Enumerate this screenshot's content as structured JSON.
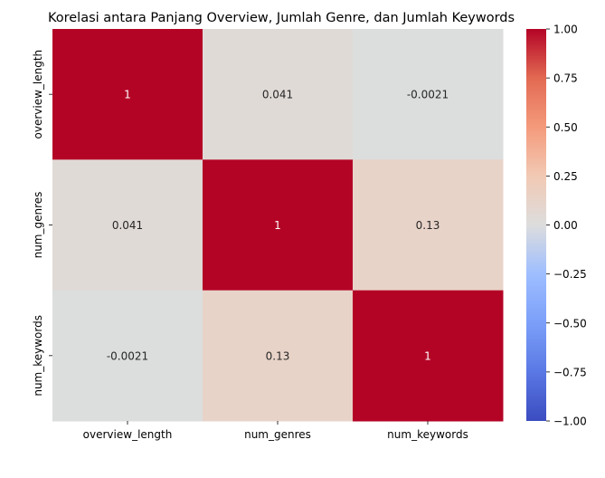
{
  "chart_data": {
    "type": "heatmap",
    "title": "Korelasi antara Panjang Overview, Jumlah Genre, dan Jumlah Keywords",
    "xlabel": "",
    "ylabel": "",
    "x_labels": [
      "overview_length",
      "num_genres",
      "num_keywords"
    ],
    "y_labels": [
      "overview_length",
      "num_genres",
      "num_keywords"
    ],
    "values": [
      [
        1,
        0.041,
        -0.0021
      ],
      [
        0.041,
        1,
        0.13
      ],
      [
        -0.0021,
        0.13,
        1
      ]
    ],
    "annotations": [
      [
        "1",
        "0.041",
        "-0.0021"
      ],
      [
        "0.041",
        "1",
        "0.13"
      ],
      [
        "-0.0021",
        "0.13",
        "1"
      ]
    ],
    "colormap": "coolwarm",
    "vmin": -1,
    "vmax": 1,
    "colorbar": {
      "ticks": [
        1.0,
        0.75,
        0.5,
        0.25,
        0.0,
        -0.25,
        -0.5,
        -0.75,
        -1.0
      ],
      "tick_labels": [
        "1.00",
        "0.75",
        "0.50",
        "0.25",
        "0.00",
        "−0.25",
        "−0.50",
        "−0.75",
        "−1.00"
      ]
    }
  }
}
